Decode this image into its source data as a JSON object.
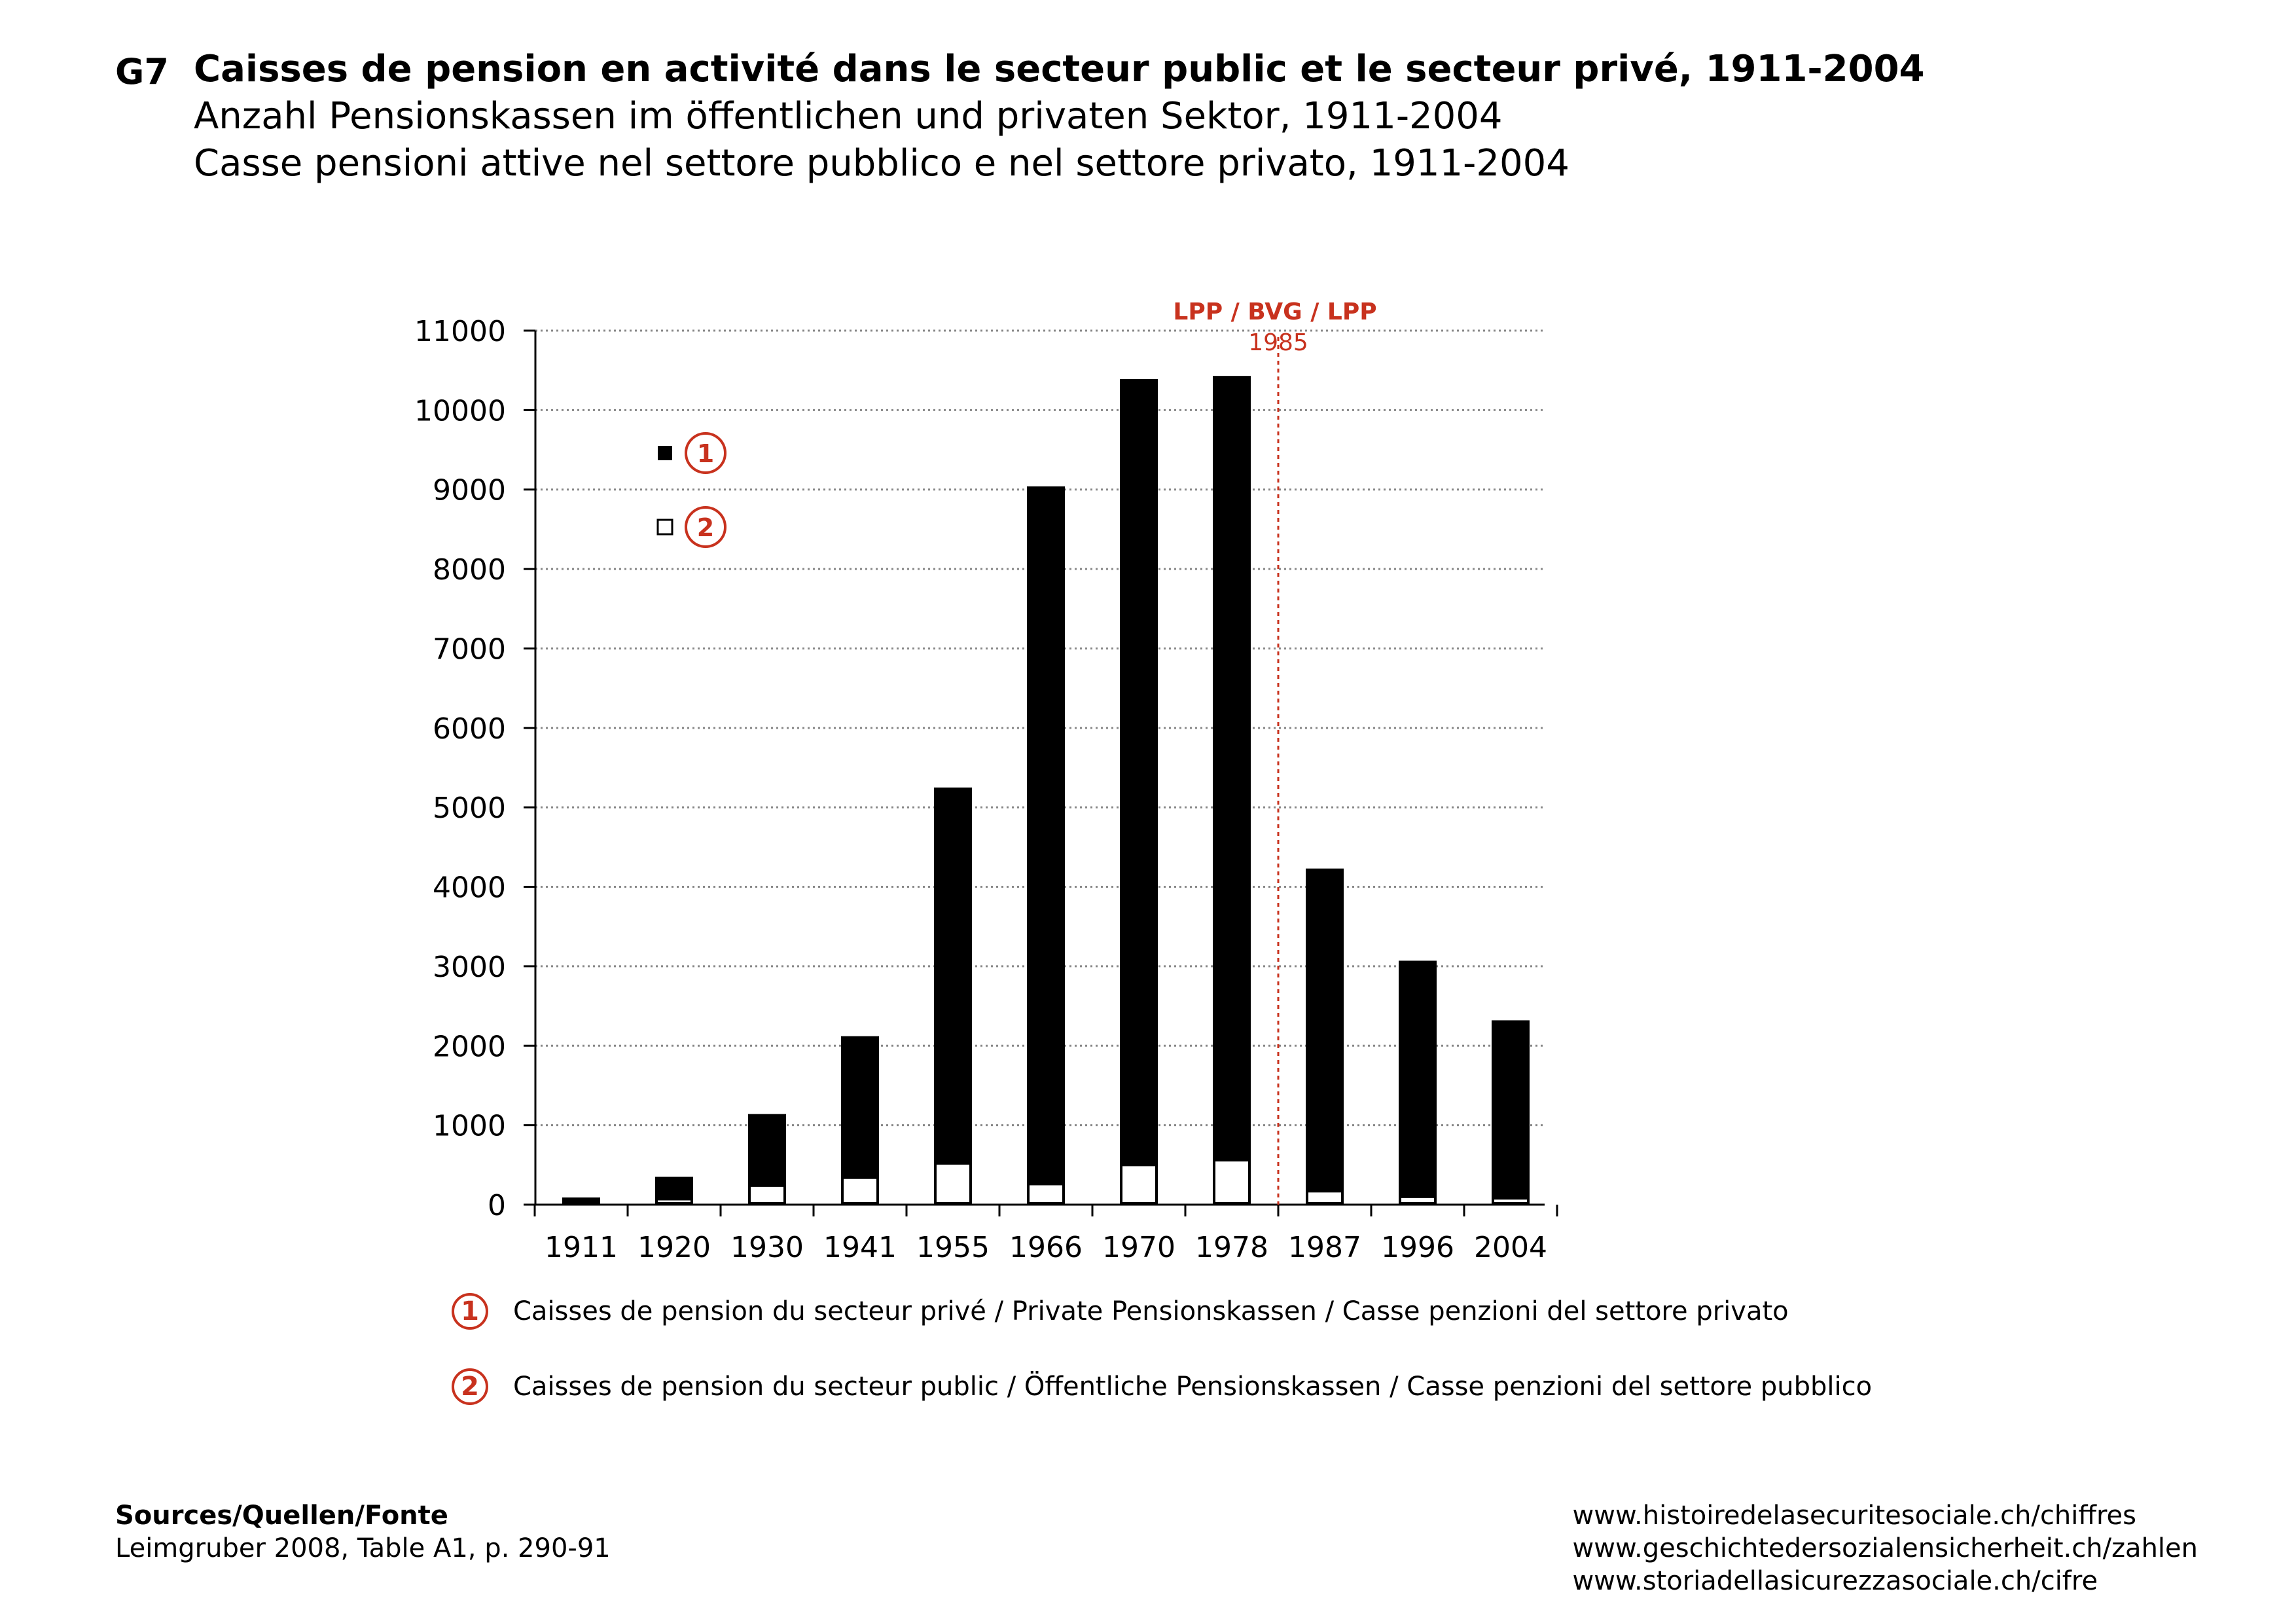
{
  "header": {
    "code": "G7",
    "title_fr": "Caisses de pension en activité dans le secteur public et le secteur privé, 1911-2004",
    "title_de": "Anzahl Pensionskassen im öffentlichen und privaten Sektor, 1911-2004",
    "title_it": "Casse pensioni attive nel settore pubblico e nel settore privato, 1911-2004"
  },
  "chart_data": {
    "type": "bar",
    "stacked": true,
    "categories": [
      "1911",
      "1920",
      "1930",
      "1941",
      "1955",
      "1966",
      "1970",
      "1978",
      "1987",
      "1996",
      "2004"
    ],
    "series": [
      {
        "name": "1",
        "fill": "#000000",
        "values": [
          50,
          280,
          900,
          1780,
          4730,
          8780,
          9890,
          9870,
          4060,
          2970,
          2240
        ]
      },
      {
        "name": "2",
        "fill": "#ffffff",
        "values": [
          40,
          70,
          240,
          340,
          520,
          260,
          500,
          560,
          170,
          100,
          80
        ]
      }
    ],
    "ylim": [
      0,
      11000
    ],
    "yticks": [
      0,
      1000,
      2000,
      3000,
      4000,
      5000,
      6000,
      7000,
      8000,
      9000,
      10000,
      11000
    ],
    "grid": true,
    "annotation": {
      "label": "LPP / BVG / LPP",
      "year": "1985",
      "position_after_category": "1978"
    },
    "legend_position": "top-left"
  },
  "legend": {
    "items": [
      {
        "number": "1",
        "label": "Caisses de pension du secteur privé / Private Pensionskassen / Casse penzioni del settore privato"
      },
      {
        "number": "2",
        "label": "Caisses de pension du secteur public / Öffentliche Pensionskassen / Casse penzioni del settore pubblico"
      }
    ]
  },
  "sources": {
    "title": "Sources/Quellen/Fonte",
    "text": "Leimgruber 2008, Table A1, p. 290-91"
  },
  "links": [
    "www.histoiredelasecuritesociale.ch/chiffres",
    "www.geschichtedersozialensicherheit.ch/zahlen",
    "www.storiadellasicurezzasociale.ch/cifre"
  ],
  "colors": {
    "accent": "#c8321e",
    "bar": "#000000",
    "grid": "#888888"
  }
}
